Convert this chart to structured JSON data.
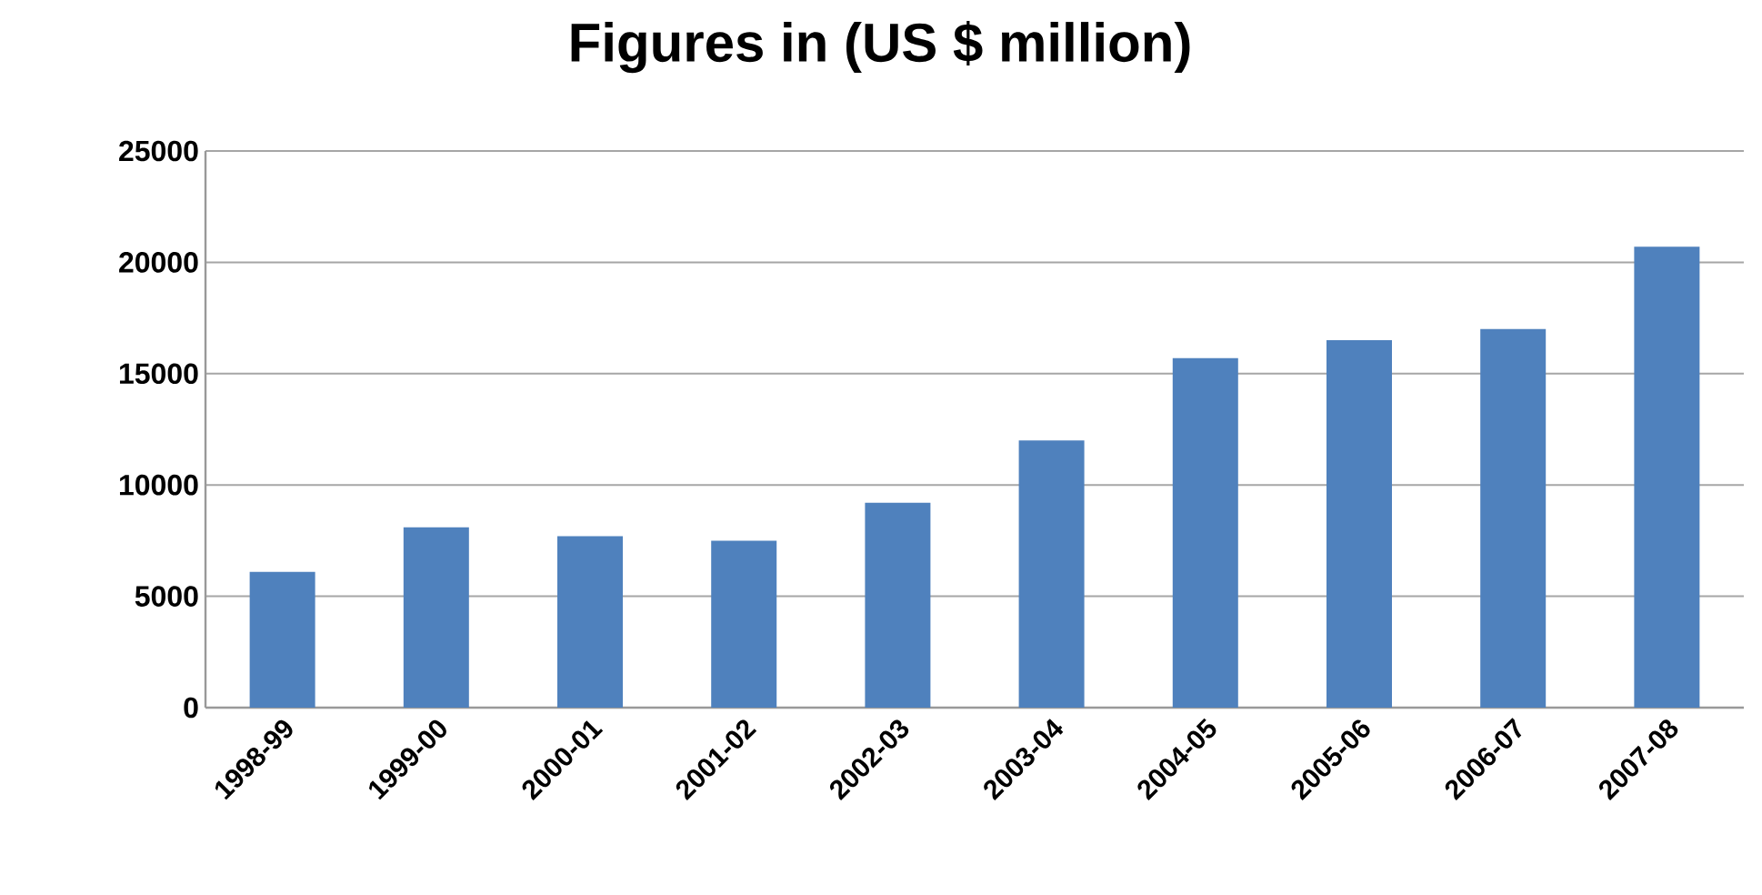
{
  "chart_data": {
    "type": "bar",
    "title": "Figures in (US $ million)",
    "categories": [
      "1998-99",
      "1999-00",
      "2000-01",
      "2001-02",
      "2002-03",
      "2003-04",
      "2004-05",
      "2005-06",
      "2006-07",
      "2007-08"
    ],
    "values": [
      6100,
      8100,
      7700,
      7500,
      9200,
      12000,
      15700,
      16500,
      17000,
      20700
    ],
    "color": "#4f81bd",
    "ylim": [
      0,
      25000
    ],
    "yticks": [
      0,
      5000,
      10000,
      15000,
      20000,
      25000
    ],
    "grid": "y"
  }
}
